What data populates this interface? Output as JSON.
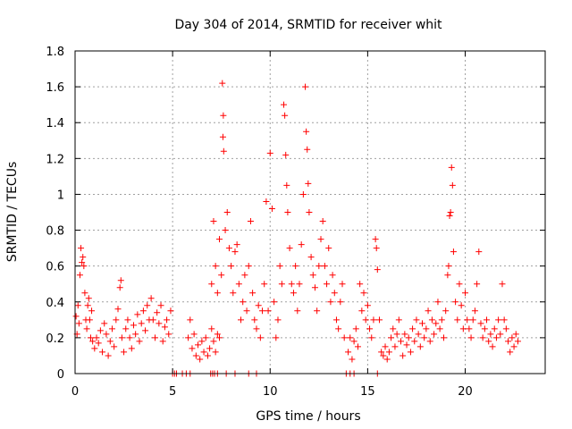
{
  "chart_data": {
    "type": "scatter",
    "title": "Day 304 of 2014, SRMTID for receiver whit",
    "xlabel": "GPS time / hours",
    "ylabel": "SRMTID / TECUs",
    "xlim": [
      0,
      24.1
    ],
    "ylim": [
      0,
      1.8
    ],
    "x_ticks": [
      0,
      5,
      10,
      15,
      20
    ],
    "x_tick_labels": [
      "0",
      "5",
      "10",
      "15",
      "20"
    ],
    "y_ticks": [
      0,
      0.2,
      0.4,
      0.6,
      0.8,
      1,
      1.2,
      1.4,
      1.6,
      1.8
    ],
    "y_tick_labels": [
      "0",
      "0.2",
      "0.4",
      "0.6",
      "0.8",
      "1",
      "1.2",
      "1.4",
      "1.6",
      "1.8"
    ],
    "grid": true,
    "marker": "+",
    "marker_color": "#ff0000",
    "series": [
      {
        "name": "SRMTID",
        "points": [
          [
            0.05,
            0.32
          ],
          [
            0.1,
            0.22
          ],
          [
            0.15,
            0.38
          ],
          [
            0.2,
            0.28
          ],
          [
            0.25,
            0.55
          ],
          [
            0.3,
            0.7
          ],
          [
            0.35,
            0.62
          ],
          [
            0.4,
            0.65
          ],
          [
            0.45,
            0.6
          ],
          [
            0.5,
            0.45
          ],
          [
            0.55,
            0.3
          ],
          [
            0.6,
            0.25
          ],
          [
            0.65,
            0.38
          ],
          [
            0.7,
            0.42
          ],
          [
            0.75,
            0.3
          ],
          [
            0.8,
            0.2
          ],
          [
            0.85,
            0.35
          ],
          [
            0.9,
            0.18
          ],
          [
            1.0,
            0.14
          ],
          [
            1.1,
            0.2
          ],
          [
            1.2,
            0.17
          ],
          [
            1.3,
            0.24
          ],
          [
            1.4,
            0.12
          ],
          [
            1.5,
            0.28
          ],
          [
            1.6,
            0.22
          ],
          [
            1.7,
            0.1
          ],
          [
            1.8,
            0.18
          ],
          [
            1.9,
            0.25
          ],
          [
            2.0,
            0.15
          ],
          [
            2.1,
            0.3
          ],
          [
            2.2,
            0.36
          ],
          [
            2.3,
            0.48
          ],
          [
            2.35,
            0.52
          ],
          [
            2.4,
            0.2
          ],
          [
            2.5,
            0.12
          ],
          [
            2.6,
            0.25
          ],
          [
            2.7,
            0.3
          ],
          [
            2.8,
            0.2
          ],
          [
            2.9,
            0.14
          ],
          [
            3.0,
            0.27
          ],
          [
            3.1,
            0.22
          ],
          [
            3.2,
            0.33
          ],
          [
            3.3,
            0.18
          ],
          [
            3.4,
            0.28
          ],
          [
            3.5,
            0.35
          ],
          [
            3.6,
            0.24
          ],
          [
            3.7,
            0.38
          ],
          [
            3.8,
            0.3
          ],
          [
            3.9,
            0.42
          ],
          [
            4.0,
            0.3
          ],
          [
            4.1,
            0.2
          ],
          [
            4.2,
            0.34
          ],
          [
            4.3,
            0.28
          ],
          [
            4.4,
            0.38
          ],
          [
            4.5,
            0.18
          ],
          [
            4.6,
            0.26
          ],
          [
            4.7,
            0.3
          ],
          [
            4.8,
            0.22
          ],
          [
            4.9,
            0.35
          ],
          [
            5.0,
            0.0
          ],
          [
            5.1,
            0.0
          ],
          [
            5.2,
            0.0
          ],
          [
            5.5,
            0.0
          ],
          [
            5.7,
            0.0
          ],
          [
            5.9,
            0.0
          ],
          [
            5.8,
            0.2
          ],
          [
            5.9,
            0.3
          ],
          [
            6.0,
            0.14
          ],
          [
            6.1,
            0.22
          ],
          [
            6.2,
            0.1
          ],
          [
            6.3,
            0.16
          ],
          [
            6.4,
            0.08
          ],
          [
            6.5,
            0.18
          ],
          [
            6.6,
            0.12
          ],
          [
            6.7,
            0.2
          ],
          [
            6.8,
            0.1
          ],
          [
            6.9,
            0.14
          ],
          [
            7.0,
            0.25
          ],
          [
            7.1,
            0.18
          ],
          [
            7.2,
            0.12
          ],
          [
            7.3,
            0.22
          ],
          [
            7.4,
            0.2
          ],
          [
            6.95,
            0.0
          ],
          [
            7.05,
            0.0
          ],
          [
            7.15,
            0.0
          ],
          [
            7.3,
            0.0
          ],
          [
            7.75,
            0.0
          ],
          [
            8.2,
            0.0
          ],
          [
            8.9,
            0.0
          ],
          [
            9.3,
            0.0
          ],
          [
            7.0,
            0.5
          ],
          [
            7.1,
            0.85
          ],
          [
            7.2,
            0.6
          ],
          [
            7.3,
            0.45
          ],
          [
            7.4,
            0.75
          ],
          [
            7.5,
            0.55
          ],
          [
            7.55,
            1.62
          ],
          [
            7.6,
            1.44
          ],
          [
            7.58,
            1.32
          ],
          [
            7.62,
            1.24
          ],
          [
            7.7,
            0.8
          ],
          [
            7.8,
            0.9
          ],
          [
            7.9,
            0.7
          ],
          [
            8.0,
            0.6
          ],
          [
            8.1,
            0.45
          ],
          [
            8.2,
            0.68
          ],
          [
            8.3,
            0.72
          ],
          [
            8.4,
            0.5
          ],
          [
            8.5,
            0.3
          ],
          [
            8.6,
            0.4
          ],
          [
            8.7,
            0.55
          ],
          [
            8.8,
            0.35
          ],
          [
            8.9,
            0.6
          ],
          [
            9.0,
            0.85
          ],
          [
            9.1,
            0.45
          ],
          [
            9.2,
            0.3
          ],
          [
            9.3,
            0.25
          ],
          [
            9.4,
            0.38
          ],
          [
            9.5,
            0.2
          ],
          [
            9.6,
            0.35
          ],
          [
            9.7,
            0.5
          ],
          [
            9.8,
            0.96
          ],
          [
            9.9,
            0.35
          ],
          [
            10.0,
            1.23
          ],
          [
            10.1,
            0.92
          ],
          [
            10.2,
            0.4
          ],
          [
            10.3,
            0.2
          ],
          [
            10.4,
            0.3
          ],
          [
            10.5,
            0.6
          ],
          [
            10.6,
            0.5
          ],
          [
            10.7,
            1.5
          ],
          [
            10.75,
            1.44
          ],
          [
            10.8,
            1.22
          ],
          [
            10.85,
            1.05
          ],
          [
            10.9,
            0.9
          ],
          [
            11.0,
            0.7
          ],
          [
            11.1,
            0.5
          ],
          [
            11.2,
            0.45
          ],
          [
            11.3,
            0.6
          ],
          [
            11.4,
            0.35
          ],
          [
            11.5,
            0.5
          ],
          [
            11.6,
            0.72
          ],
          [
            11.7,
            1.0
          ],
          [
            11.8,
            1.6
          ],
          [
            11.85,
            1.35
          ],
          [
            11.9,
            1.25
          ],
          [
            11.95,
            1.06
          ],
          [
            12.0,
            0.9
          ],
          [
            12.1,
            0.65
          ],
          [
            12.2,
            0.55
          ],
          [
            12.3,
            0.48
          ],
          [
            12.4,
            0.35
          ],
          [
            12.5,
            0.6
          ],
          [
            12.6,
            0.75
          ],
          [
            12.7,
            0.85
          ],
          [
            12.8,
            0.6
          ],
          [
            12.9,
            0.5
          ],
          [
            13.0,
            0.7
          ],
          [
            13.1,
            0.4
          ],
          [
            13.2,
            0.55
          ],
          [
            13.3,
            0.45
          ],
          [
            13.4,
            0.3
          ],
          [
            13.5,
            0.25
          ],
          [
            13.6,
            0.4
          ],
          [
            13.7,
            0.5
          ],
          [
            13.8,
            0.2
          ],
          [
            13.9,
            0.0
          ],
          [
            14.1,
            0.0
          ],
          [
            14.3,
            0.0
          ],
          [
            15.5,
            0.0
          ],
          [
            14.0,
            0.12
          ],
          [
            14.1,
            0.2
          ],
          [
            14.2,
            0.08
          ],
          [
            14.3,
            0.18
          ],
          [
            14.4,
            0.25
          ],
          [
            14.5,
            0.15
          ],
          [
            14.6,
            0.5
          ],
          [
            14.7,
            0.35
          ],
          [
            14.8,
            0.45
          ],
          [
            14.9,
            0.3
          ],
          [
            15.0,
            0.38
          ],
          [
            15.1,
            0.25
          ],
          [
            15.2,
            0.2
          ],
          [
            15.3,
            0.3
          ],
          [
            15.4,
            0.75
          ],
          [
            15.45,
            0.7
          ],
          [
            15.5,
            0.58
          ],
          [
            15.6,
            0.3
          ],
          [
            15.7,
            0.12
          ],
          [
            15.8,
            0.1
          ],
          [
            15.9,
            0.15
          ],
          [
            16.0,
            0.08
          ],
          [
            16.1,
            0.12
          ],
          [
            16.2,
            0.2
          ],
          [
            16.3,
            0.25
          ],
          [
            16.4,
            0.15
          ],
          [
            16.5,
            0.22
          ],
          [
            16.6,
            0.3
          ],
          [
            16.7,
            0.18
          ],
          [
            16.8,
            0.1
          ],
          [
            16.9,
            0.22
          ],
          [
            17.0,
            0.16
          ],
          [
            17.1,
            0.2
          ],
          [
            17.2,
            0.12
          ],
          [
            17.3,
            0.25
          ],
          [
            17.4,
            0.18
          ],
          [
            17.5,
            0.3
          ],
          [
            17.6,
            0.22
          ],
          [
            17.7,
            0.15
          ],
          [
            17.8,
            0.28
          ],
          [
            17.9,
            0.2
          ],
          [
            18.0,
            0.25
          ],
          [
            18.1,
            0.35
          ],
          [
            18.2,
            0.18
          ],
          [
            18.3,
            0.3
          ],
          [
            18.4,
            0.22
          ],
          [
            18.5,
            0.28
          ],
          [
            18.6,
            0.4
          ],
          [
            18.7,
            0.25
          ],
          [
            18.8,
            0.3
          ],
          [
            18.9,
            0.2
          ],
          [
            19.0,
            0.35
          ],
          [
            19.1,
            0.55
          ],
          [
            19.15,
            0.6
          ],
          [
            19.2,
            0.88
          ],
          [
            19.25,
            0.9
          ],
          [
            19.3,
            1.15
          ],
          [
            19.35,
            1.05
          ],
          [
            19.4,
            0.68
          ],
          [
            19.5,
            0.4
          ],
          [
            19.6,
            0.3
          ],
          [
            19.7,
            0.5
          ],
          [
            19.8,
            0.38
          ],
          [
            19.9,
            0.25
          ],
          [
            20.0,
            0.45
          ],
          [
            20.1,
            0.3
          ],
          [
            20.2,
            0.25
          ],
          [
            20.3,
            0.2
          ],
          [
            20.4,
            0.3
          ],
          [
            20.5,
            0.35
          ],
          [
            20.6,
            0.5
          ],
          [
            20.7,
            0.68
          ],
          [
            20.8,
            0.28
          ],
          [
            20.9,
            0.2
          ],
          [
            21.0,
            0.25
          ],
          [
            21.1,
            0.3
          ],
          [
            21.2,
            0.18
          ],
          [
            21.3,
            0.22
          ],
          [
            21.4,
            0.15
          ],
          [
            21.5,
            0.25
          ],
          [
            21.6,
            0.2
          ],
          [
            21.7,
            0.3
          ],
          [
            21.8,
            0.22
          ],
          [
            21.9,
            0.5
          ],
          [
            22.0,
            0.3
          ],
          [
            22.1,
            0.25
          ],
          [
            22.2,
            0.18
          ],
          [
            22.3,
            0.12
          ],
          [
            22.4,
            0.2
          ],
          [
            22.5,
            0.15
          ],
          [
            22.6,
            0.22
          ],
          [
            22.7,
            0.18
          ]
        ]
      }
    ]
  }
}
